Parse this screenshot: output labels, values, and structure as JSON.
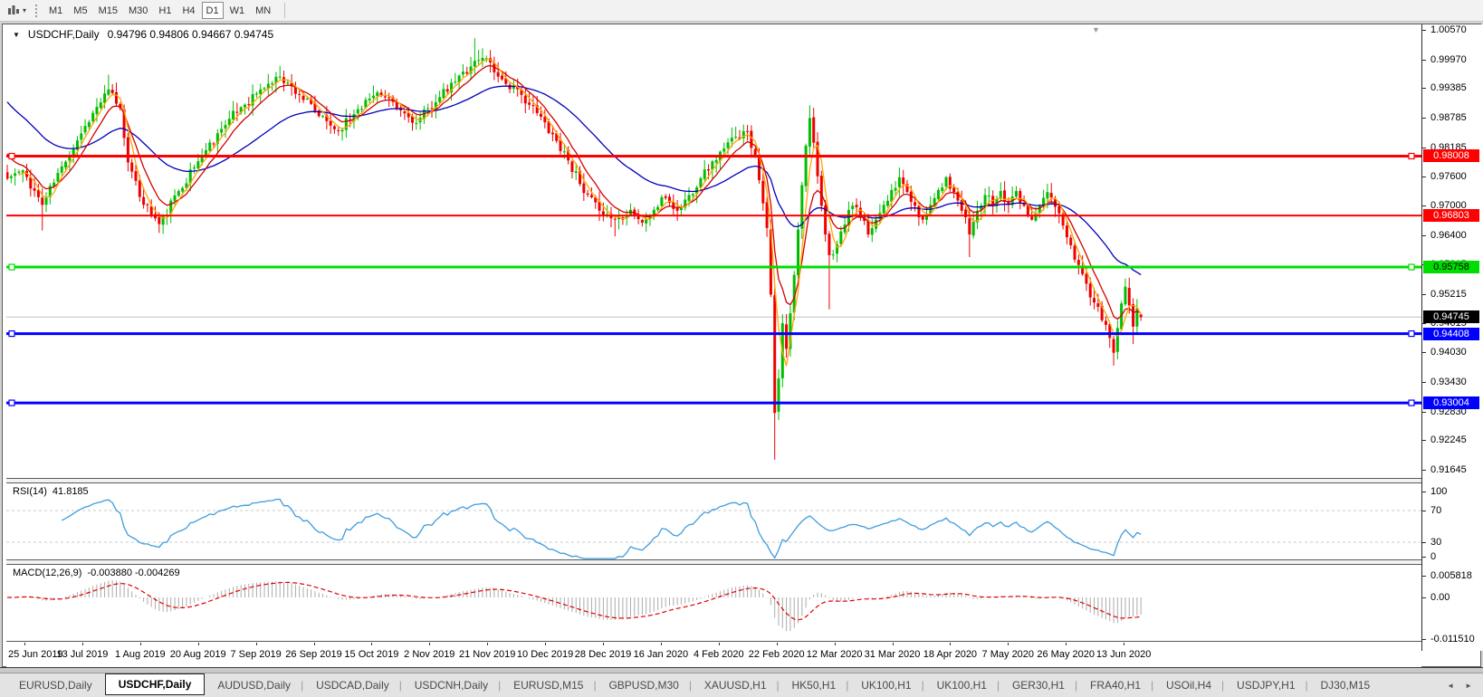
{
  "icons": {
    "title_caret": "▼",
    "dropdown_caret": "▾",
    "shift_marker": "▼",
    "tab_scroll_left": "◄",
    "tab_scroll_right": "►"
  },
  "toolbar": {
    "timeframes": [
      "M1",
      "M5",
      "M15",
      "M30",
      "H1",
      "H4",
      "D1",
      "W1",
      "MN"
    ],
    "active_timeframe": "D1"
  },
  "window": {
    "symbol_title": "USDCHF,Daily",
    "ohlc": "0.94796 0.94806 0.94667 0.94745"
  },
  "price_axis": {
    "ticks": [
      "1.00570",
      "0.99970",
      "0.99385",
      "0.98785",
      "0.98185",
      "0.97600",
      "0.97000",
      "0.96400",
      "0.95815",
      "0.95215",
      "0.94615",
      "0.94030",
      "0.93430",
      "0.92830",
      "0.92245",
      "0.91645"
    ],
    "badges": [
      {
        "label": "0.98008",
        "bg": "#FF0000",
        "fg": "#FFFFFF"
      },
      {
        "label": "0.96803",
        "bg": "#FF0000",
        "fg": "#FFFFFF"
      },
      {
        "label": "0.95758",
        "bg": "#00DD00",
        "fg": "#000000"
      },
      {
        "label": "0.94745",
        "bg": "#000000",
        "fg": "#FFFFFF"
      },
      {
        "label": "0.94408",
        "bg": "#0000FF",
        "fg": "#FFFFFF"
      },
      {
        "label": "0.93004",
        "bg": "#0000FF",
        "fg": "#FFFFFF"
      }
    ]
  },
  "time_axis": {
    "labels": [
      "25 Jun 2019",
      "13 Jul 2019",
      "1 Aug 2019",
      "20 Aug 2019",
      "7 Sep 2019",
      "26 Sep 2019",
      "15 Oct 2019",
      "2 Nov 2019",
      "21 Nov 2019",
      "10 Dec 2019",
      "28 Dec 2019",
      "16 Jan 2020",
      "4 Feb 2020",
      "22 Feb 2020",
      "12 Mar 2020",
      "31 Mar 2020",
      "18 Apr 2020",
      "7 May 2020",
      "26 May 2020",
      "13 Jun 2020"
    ]
  },
  "rsi_pane": {
    "title": "RSI(14)",
    "value": "41.8185",
    "axis_labels": [
      "100",
      "70",
      "30",
      "0"
    ]
  },
  "macd_pane": {
    "title": "MACD(12,26,9)",
    "values": "-0.003880 -0.004269",
    "axis_labels": [
      "0.005818",
      "0.00",
      "-0.011510"
    ]
  },
  "tab_bar": {
    "tabs": [
      "EURUSD,Daily",
      "USDCHF,Daily",
      "AUDUSD,Daily",
      "USDCAD,Daily",
      "USDCNH,Daily",
      "EURUSD,M15",
      "GBPUSD,M30",
      "XAUUSD,H1",
      "HK50,H1",
      "UK100,H1",
      "UK100,H1",
      "GER30,H1",
      "FRA40,H1",
      "USOil,H4",
      "USDJPY,H1",
      "DJ30,M15"
    ],
    "active": "USDCHF,Daily"
  },
  "chart_data": {
    "type": "candlestick",
    "symbol": "USDCHF",
    "timeframe": "Daily",
    "last_ohlc": {
      "open": 0.94796,
      "high": 0.94806,
      "low": 0.94667,
      "close": 0.94745
    },
    "price_range": {
      "top": 1.0066,
      "bottom": 0.91555
    },
    "y_ticks": [
      1.0057,
      0.9997,
      0.99385,
      0.98785,
      0.98185,
      0.976,
      0.97,
      0.964,
      0.95815,
      0.95215,
      0.94615,
      0.9403,
      0.9343,
      0.9283,
      0.92245,
      0.91645
    ],
    "colors": {
      "bull": "#00BE00",
      "bear": "#EE0000",
      "ma_fast": "#FFA500",
      "ma_mid": "#D40000",
      "ma_slow": "#0000BB",
      "level_red": "#FF0000",
      "level_green": "#00DD00",
      "level_blue": "#0000FF",
      "current_price_line": "#C0C0C0",
      "rsi_line": "#3E9CDE",
      "rsi_level_dash": "#C8C8C8",
      "macd_hist": "#ABABAB",
      "macd_signal": "#E00000"
    },
    "horizontal_levels": [
      {
        "price": 0.98008,
        "color": "#FF0000",
        "width": 3,
        "handles": true
      },
      {
        "price": 0.96803,
        "color": "#FF0000",
        "width": 2,
        "handles": false
      },
      {
        "price": 0.95758,
        "color": "#00DD00",
        "width": 3,
        "handles": true
      },
      {
        "price": 0.94408,
        "color": "#0000FF",
        "width": 3,
        "handles": true
      },
      {
        "price": 0.93004,
        "color": "#0000FF",
        "width": 3,
        "handles": true
      }
    ],
    "current_price": 0.94745,
    "moving_averages": [
      {
        "kind": "sma",
        "period": 4,
        "color": "#FFA500"
      },
      {
        "kind": "ema",
        "period": 8,
        "seed": 0.982,
        "color": "#D40000"
      },
      {
        "kind": "ema",
        "period": 34,
        "seed": 0.992,
        "color": "#0000BB"
      }
    ],
    "candle_count": 292,
    "close_anchors": [
      [
        0,
        0.9755
      ],
      [
        4,
        0.9772
      ],
      [
        9,
        0.9702
      ],
      [
        14,
        0.978
      ],
      [
        20,
        0.9862
      ],
      [
        26,
        0.9936
      ],
      [
        29,
        0.9898
      ],
      [
        31,
        0.9788
      ],
      [
        34,
        0.9718
      ],
      [
        39,
        0.9663
      ],
      [
        44,
        0.973
      ],
      [
        50,
        0.9802
      ],
      [
        55,
        0.9856
      ],
      [
        60,
        0.99
      ],
      [
        65,
        0.9936
      ],
      [
        70,
        0.9962
      ],
      [
        75,
        0.9925
      ],
      [
        80,
        0.9882
      ],
      [
        85,
        0.9852
      ],
      [
        90,
        0.9896
      ],
      [
        95,
        0.993
      ],
      [
        100,
        0.9898
      ],
      [
        105,
        0.9868
      ],
      [
        110,
        0.991
      ],
      [
        115,
        0.9952
      ],
      [
        120,
        0.9994
      ],
      [
        123,
        0.9999
      ],
      [
        126,
        0.9962
      ],
      [
        132,
        0.9925
      ],
      [
        136,
        0.9888
      ],
      [
        140,
        0.9845
      ],
      [
        144,
        0.9792
      ],
      [
        148,
        0.9726
      ],
      [
        152,
        0.969
      ],
      [
        156,
        0.9672
      ],
      [
        160,
        0.9692
      ],
      [
        163,
        0.9666
      ],
      [
        166,
        0.9692
      ],
      [
        169,
        0.9716
      ],
      [
        172,
        0.969
      ],
      [
        175,
        0.9722
      ],
      [
        178,
        0.9756
      ],
      [
        181,
        0.979
      ],
      [
        184,
        0.9816
      ],
      [
        187,
        0.984
      ],
      [
        190,
        0.985
      ],
      [
        192,
        0.9802
      ],
      [
        193,
        0.9752
      ],
      [
        194,
        0.9705
      ],
      [
        195,
        0.9655
      ],
      [
        196,
        0.952
      ],
      [
        197,
        0.928
      ],
      [
        198,
        0.935
      ],
      [
        199,
        0.9462
      ],
      [
        200,
        0.941
      ],
      [
        201,
        0.9482
      ],
      [
        202,
        0.956
      ],
      [
        203,
        0.9652
      ],
      [
        204,
        0.9742
      ],
      [
        205,
        0.9822
      ],
      [
        206,
        0.9878
      ],
      [
        207,
        0.9828
      ],
      [
        208,
        0.976
      ],
      [
        209,
        0.97
      ],
      [
        210,
        0.9642
      ],
      [
        211,
        0.96
      ],
      [
        213,
        0.9622
      ],
      [
        215,
        0.9662
      ],
      [
        217,
        0.97
      ],
      [
        219,
        0.9678
      ],
      [
        221,
        0.9642
      ],
      [
        223,
        0.9672
      ],
      [
        225,
        0.9702
      ],
      [
        227,
        0.9732
      ],
      [
        229,
        0.9758
      ],
      [
        231,
        0.9728
      ],
      [
        233,
        0.97
      ],
      [
        235,
        0.9672
      ],
      [
        237,
        0.9702
      ],
      [
        239,
        0.9732
      ],
      [
        241,
        0.9758
      ],
      [
        243,
        0.9728
      ],
      [
        245,
        0.969
      ],
      [
        247,
        0.9642
      ],
      [
        249,
        0.969
      ],
      [
        251,
        0.9722
      ],
      [
        253,
        0.97
      ],
      [
        255,
        0.973
      ],
      [
        257,
        0.9702
      ],
      [
        259,
        0.973
      ],
      [
        261,
        0.97
      ],
      [
        263,
        0.9672
      ],
      [
        265,
        0.97
      ],
      [
        267,
        0.9728
      ],
      [
        269,
        0.9698
      ],
      [
        271,
        0.966
      ],
      [
        273,
        0.962
      ],
      [
        275,
        0.958
      ],
      [
        277,
        0.9542
      ],
      [
        279,
        0.9504
      ],
      [
        281,
        0.9468
      ],
      [
        283,
        0.9432
      ],
      [
        284,
        0.9402
      ],
      [
        285,
        0.9452
      ],
      [
        286,
        0.9502
      ],
      [
        287,
        0.9536
      ],
      [
        288,
        0.9498
      ],
      [
        289,
        0.9455
      ],
      [
        290,
        0.9492
      ],
      [
        291,
        0.94745
      ]
    ],
    "wick_overrides": [
      [
        9,
        null,
        0.965
      ],
      [
        26,
        0.9966,
        null
      ],
      [
        39,
        null,
        0.9645
      ],
      [
        70,
        0.9984,
        null
      ],
      [
        120,
        1.004,
        null
      ],
      [
        156,
        null,
        0.9638
      ],
      [
        190,
        0.9864,
        null
      ],
      [
        197,
        null,
        0.9185
      ],
      [
        206,
        0.9904,
        null
      ],
      [
        211,
        null,
        0.949
      ],
      [
        247,
        null,
        0.9596
      ],
      [
        284,
        null,
        0.9376
      ],
      [
        289,
        null,
        0.942
      ]
    ],
    "indicators": {
      "rsi": {
        "period": 14,
        "last": 41.8185,
        "levels": [
          70,
          30
        ]
      },
      "macd": {
        "fast": 12,
        "slow": 26,
        "signal": 9,
        "last_macd": -0.00388,
        "last_signal": -0.004269,
        "axis_max": 0.005818,
        "axis_min": -0.01151
      }
    }
  }
}
